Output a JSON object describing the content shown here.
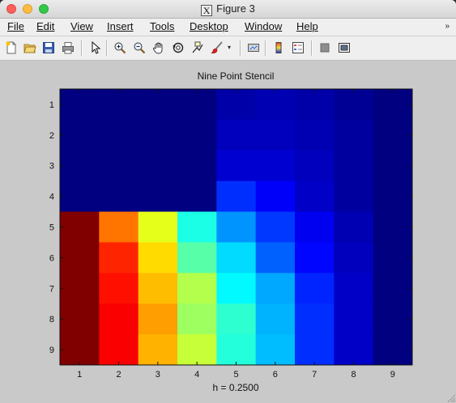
{
  "window": {
    "title": "Figure 3"
  },
  "menubar": {
    "items": [
      "File",
      "Edit",
      "View",
      "Insert",
      "Tools",
      "Desktop",
      "Window",
      "Help"
    ],
    "overflow_icon": "double-chevron-icon"
  },
  "toolbar": {
    "icons": [
      "new-figure-icon",
      "open-file-icon",
      "save-icon",
      "print-icon",
      "arrow-pointer-icon",
      "zoom-in-icon",
      "zoom-out-icon",
      "pan-hand-icon",
      "rotate-3d-icon",
      "data-cursor-icon",
      "brush-icon",
      "brush-dropdown-icon",
      "link-plot-icon",
      "colorbar-icon",
      "legend-icon",
      "hide-plot-tools-icon",
      "show-plot-tools-icon"
    ]
  },
  "chart_data": {
    "type": "heatmap",
    "title": "Nine Point Stencil",
    "xlabel": "h = 0.2500",
    "ylabel": "",
    "x_ticks": [
      "1",
      "2",
      "3",
      "4",
      "5",
      "6",
      "7",
      "8",
      "9"
    ],
    "y_ticks": [
      "1",
      "2",
      "3",
      "4",
      "5",
      "6",
      "7",
      "8",
      "9"
    ],
    "colormap": "jet",
    "clim": [
      0,
      1
    ],
    "grid": false,
    "values": [
      [
        0.0,
        0.0,
        0.0,
        0.0,
        0.04,
        0.05,
        0.04,
        0.02,
        0.0
      ],
      [
        0.0,
        0.0,
        0.0,
        0.0,
        0.06,
        0.06,
        0.05,
        0.03,
        0.0
      ],
      [
        0.0,
        0.0,
        0.0,
        0.0,
        0.08,
        0.08,
        0.06,
        0.03,
        0.0
      ],
      [
        0.0,
        0.0,
        0.0,
        0.0,
        0.17,
        0.12,
        0.07,
        0.03,
        0.0
      ],
      [
        1.0,
        0.76,
        0.6,
        0.4,
        0.27,
        0.18,
        0.11,
        0.05,
        0.0
      ],
      [
        1.0,
        0.84,
        0.66,
        0.46,
        0.34,
        0.22,
        0.13,
        0.06,
        0.0
      ],
      [
        1.0,
        0.86,
        0.69,
        0.55,
        0.37,
        0.29,
        0.16,
        0.07,
        0.0
      ],
      [
        1.0,
        0.88,
        0.72,
        0.53,
        0.42,
        0.3,
        0.17,
        0.07,
        0.0
      ],
      [
        1.0,
        0.88,
        0.7,
        0.57,
        0.41,
        0.31,
        0.17,
        0.07,
        0.0
      ]
    ]
  }
}
